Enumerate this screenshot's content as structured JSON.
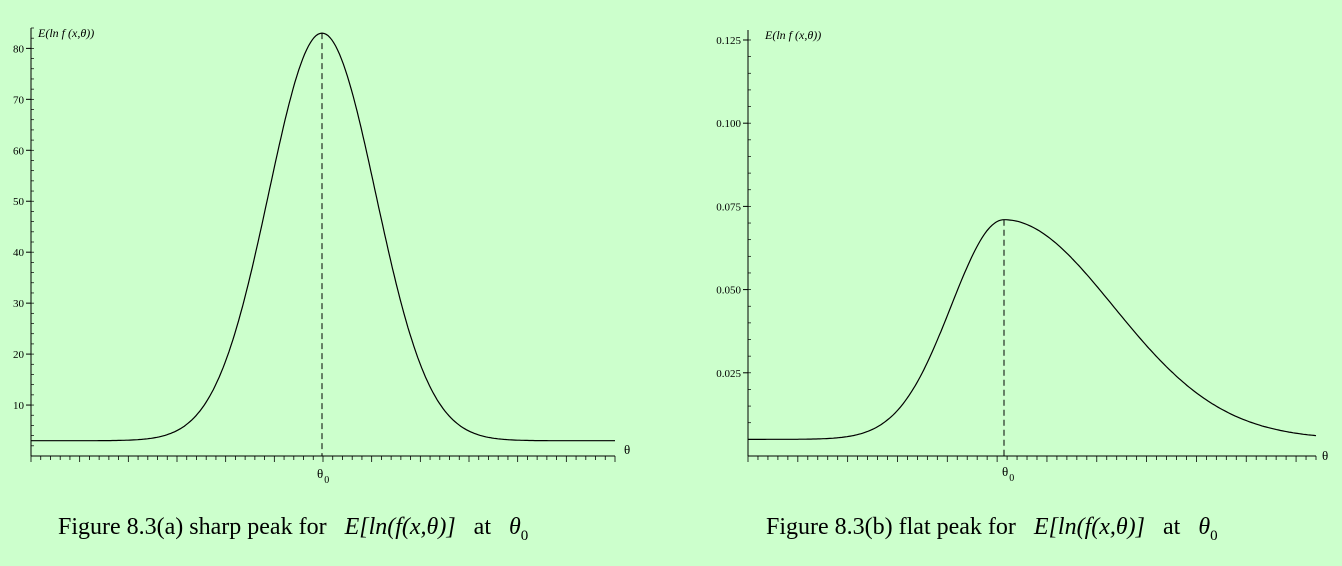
{
  "chart_data": [
    {
      "type": "line",
      "ylabel": "E(ln f (x,θ))",
      "xlabel": "θ",
      "x_tick_label": "θ",
      "x_tick_sub": "0",
      "y_ticks": [
        10,
        20,
        30,
        40,
        50,
        60,
        70,
        80
      ],
      "ylim": [
        0,
        84
      ],
      "xlim": [
        -3,
        3
      ],
      "baseline": 3,
      "peak": 83,
      "peak_x": 0,
      "grid": false,
      "caption": {
        "prefix": "Figure 8.3(a) sharp peak for",
        "expr": "E[ln(f(x,θ)]",
        "at": "at",
        "theta": "θ",
        "sub": "0"
      }
    },
    {
      "type": "line",
      "ylabel": "E(ln f (x,θ))",
      "xlabel": "θ",
      "x_tick_label": "θ",
      "x_tick_sub": "0",
      "y_ticks": [
        "0.025",
        "0.050",
        "0.075",
        "0.100",
        "0.125"
      ],
      "ylim": [
        0,
        0.128
      ],
      "xlim": [
        -3,
        3
      ],
      "baseline": 0.005,
      "peak": 0.071,
      "peak_x": 0,
      "grid": false,
      "caption": {
        "prefix": "Figure 8.3(b) flat peak for",
        "expr": "E[ln(f(x,θ)]",
        "at": "at",
        "theta": "θ",
        "sub": "0"
      }
    }
  ]
}
